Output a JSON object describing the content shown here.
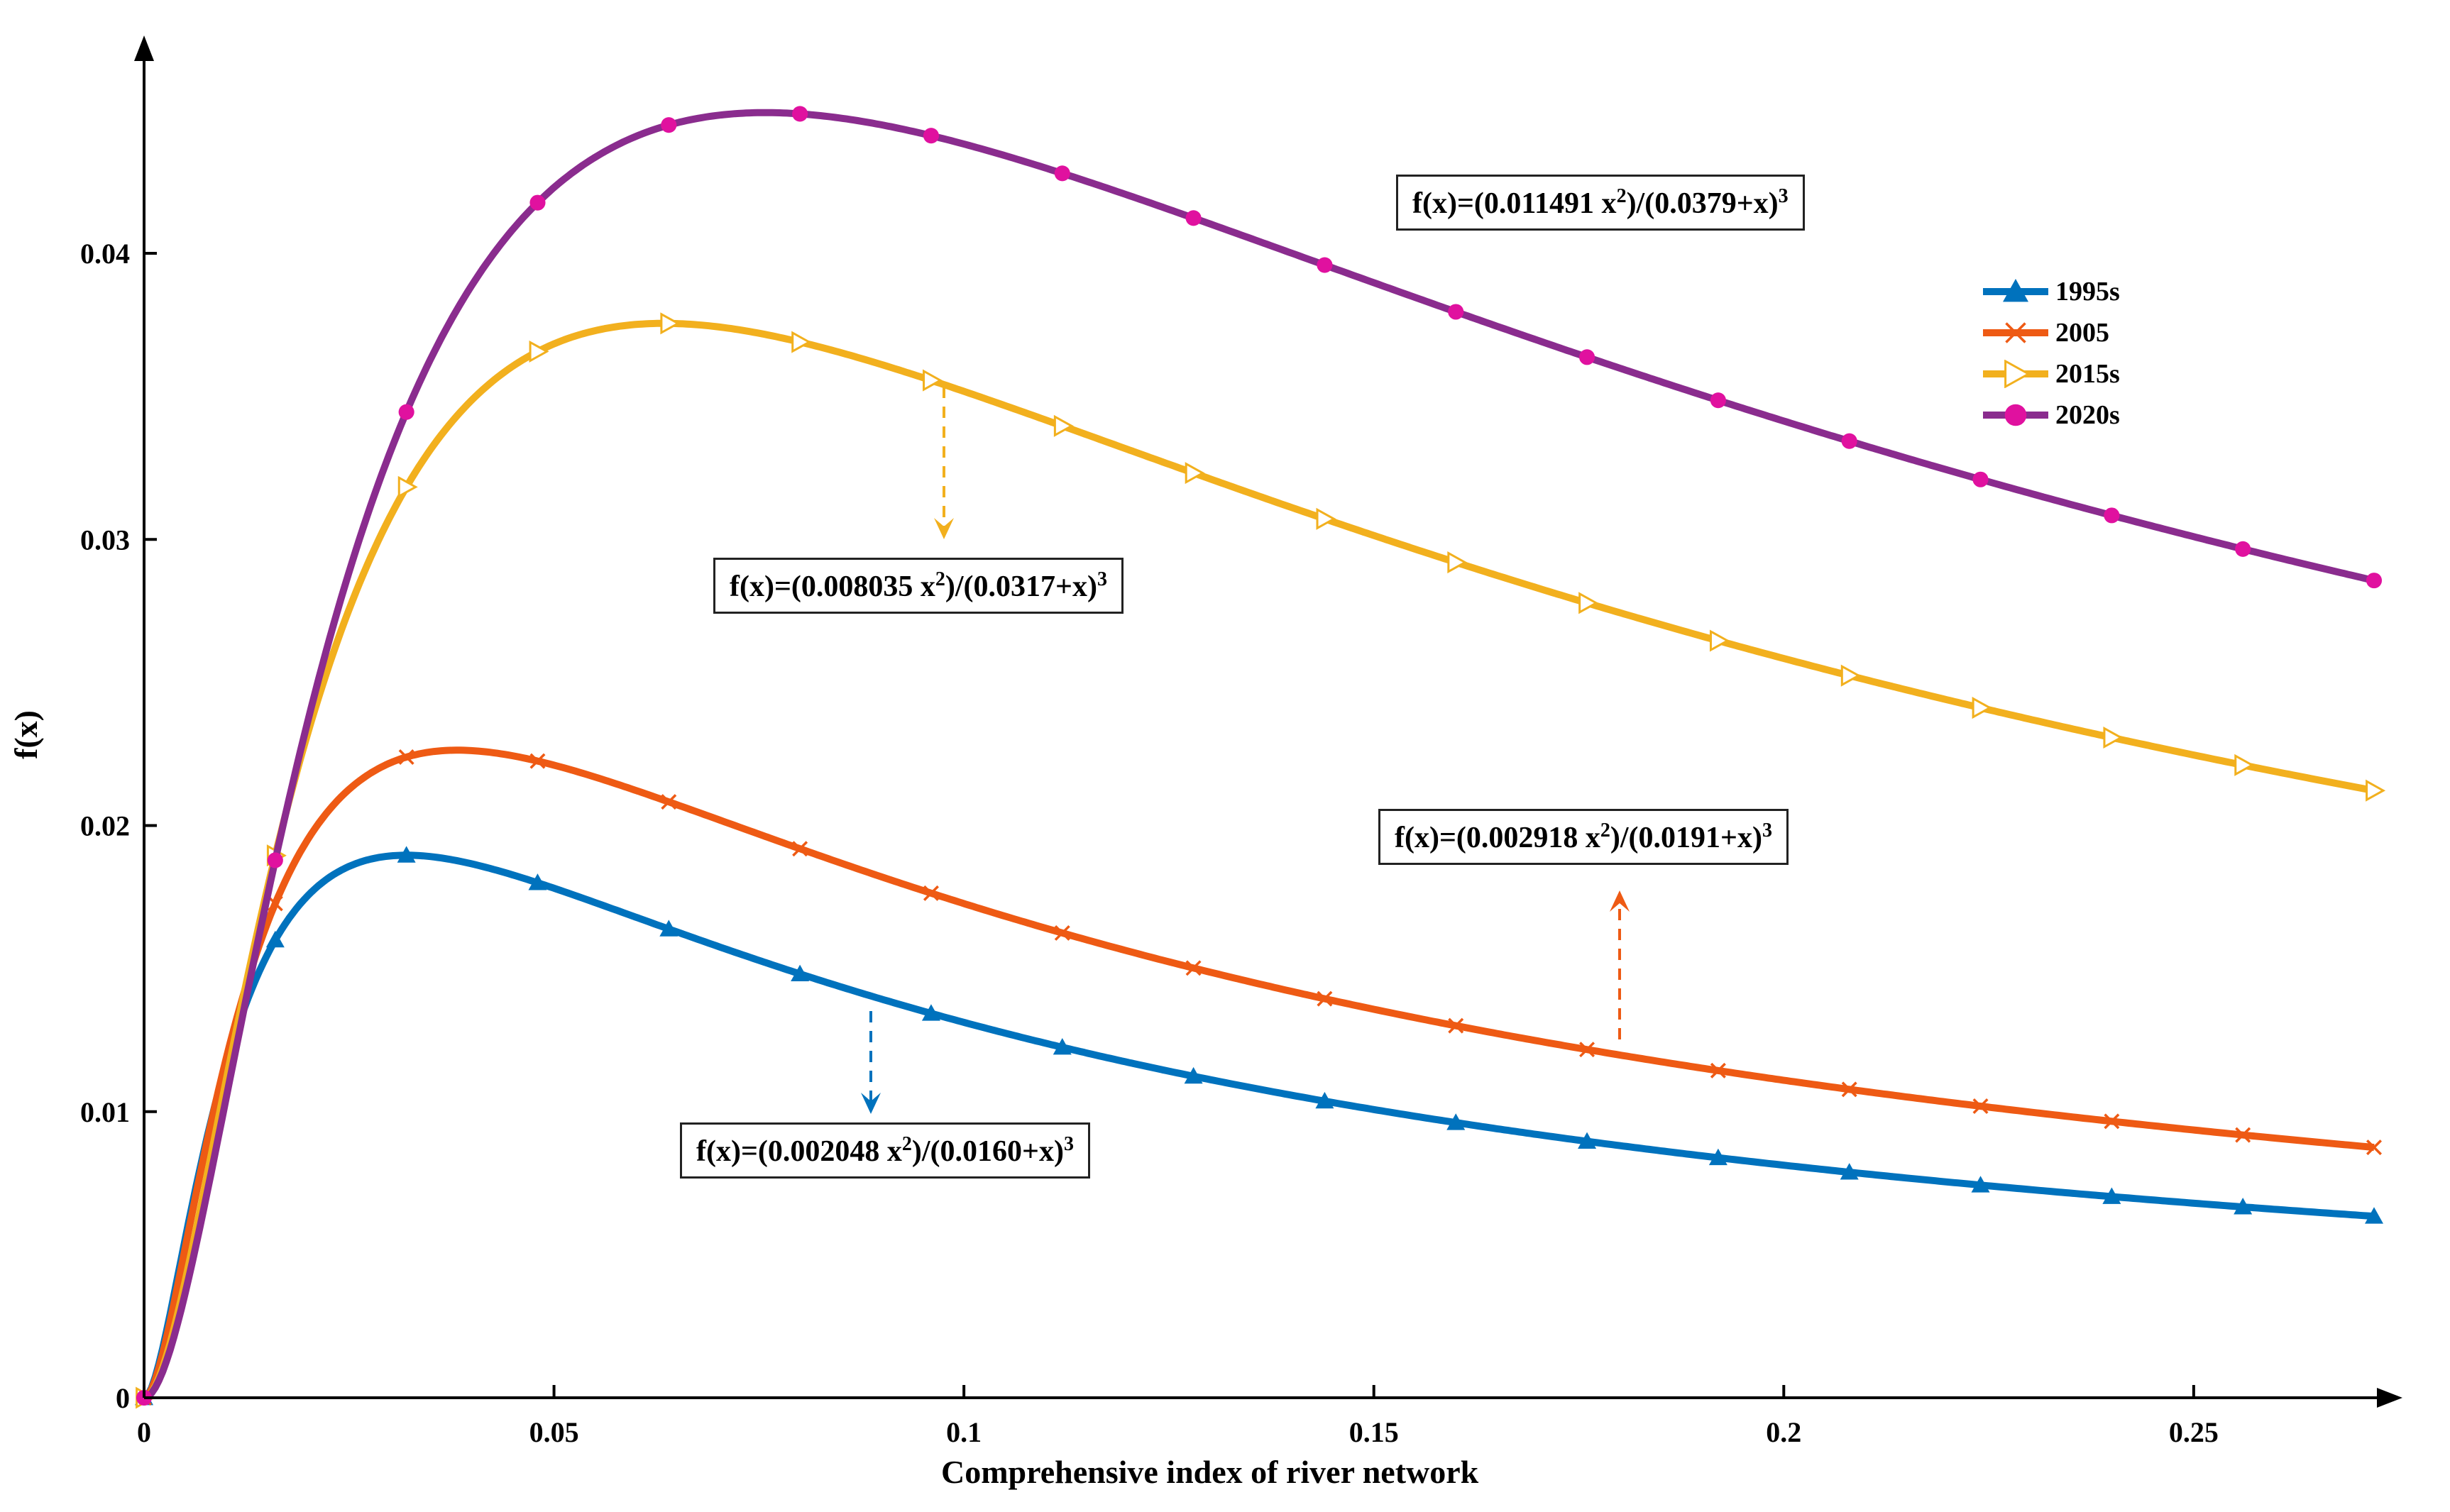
{
  "chart_data": {
    "type": "line",
    "title": "",
    "xlabel": "Comprehensive index of river network",
    "ylabel": "f(x)",
    "xlim": [
      0,
      0.272
    ],
    "ylim": [
      0,
      0.048
    ],
    "xticks": [
      0,
      0.05,
      0.1,
      0.15,
      0.2,
      0.25
    ],
    "xtick_labels": [
      "0",
      "0.05",
      "0.1",
      "0.15",
      "0.2",
      "0.25"
    ],
    "yticks": [
      0,
      0.01,
      0.02,
      0.03,
      0.04
    ],
    "ytick_labels": [
      "0",
      "0.01",
      "0.02",
      "0.03",
      "0.04"
    ],
    "grid": false,
    "legend_position": "top-right",
    "series": [
      {
        "name": "1995s",
        "color": "#0072BD",
        "marker": "triangle-up",
        "a": 0.002048,
        "b": 0.016,
        "equation_pre": "f(x)=(0.002048 x",
        "equation_mid": ")/(0.0160+x)",
        "exp": "2",
        "exp2": "3"
      },
      {
        "name": "2005",
        "color": "#EE5A14",
        "marker": "x",
        "a": 0.002918,
        "b": 0.0191,
        "equation_pre": "f(x)=(0.002918 x",
        "equation_mid": ")/(0.0191+x)",
        "exp": "2",
        "exp2": "3"
      },
      {
        "name": "2015s",
        "color": "#F2B01E",
        "marker": "triangle-right",
        "a": 0.008035,
        "b": 0.0317,
        "equation_pre": "f(x)=(0.008035 x",
        "equation_mid": ")/(0.0317+x)",
        "exp": "2",
        "exp2": "3"
      },
      {
        "name": "2020s",
        "color": "#8A2C8E",
        "marker": "circle",
        "marker_color": "#E0119F",
        "a": 0.011491,
        "b": 0.0379,
        "equation_pre": "f(x)=(0.011491 x",
        "equation_mid": ")/(0.0379+x)",
        "exp": "2",
        "exp2": "3"
      }
    ]
  }
}
